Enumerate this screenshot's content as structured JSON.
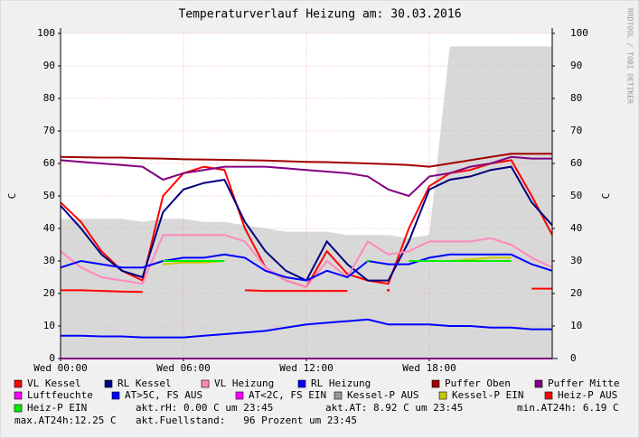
{
  "chart_data": {
    "type": "line",
    "title": "Temperaturverlauf Heizung am: 30.03.2016",
    "ylabel": "C",
    "y2label": "C",
    "watermark": "RRDTOOL / TOBI OETIKER",
    "x": [
      0,
      1,
      2,
      3,
      4,
      5,
      6,
      7,
      8,
      9,
      10,
      11,
      12,
      13,
      14,
      15,
      16,
      17,
      18,
      19,
      20,
      21,
      22,
      23,
      24
    ],
    "xlim": [
      0,
      24
    ],
    "xticks": [
      {
        "value": 0,
        "label": "Wed 00:00"
      },
      {
        "value": 6,
        "label": "Wed 06:00"
      },
      {
        "value": 12,
        "label": "Wed 12:00"
      },
      {
        "value": 18,
        "label": "Wed 18:00"
      }
    ],
    "ylim": [
      0,
      100
    ],
    "yticks": [
      0,
      10,
      20,
      30,
      40,
      50,
      60,
      70,
      80,
      90,
      100
    ],
    "y2lim": [
      0,
      100
    ],
    "y2ticks": [
      0,
      10,
      20,
      30,
      40,
      50,
      60,
      70,
      80,
      90,
      100
    ],
    "grid": true,
    "series": [
      {
        "name": "VL Kessel",
        "color": "#ff0000",
        "values": [
          48,
          42,
          33,
          27,
          24,
          50,
          57,
          59,
          58,
          40,
          28,
          24,
          22,
          33,
          26,
          24,
          23,
          40,
          53,
          57,
          58,
          60,
          61,
          50,
          38
        ]
      },
      {
        "name": "RL Kessel",
        "color": "#000080",
        "values": [
          47,
          40,
          32,
          27,
          25,
          45,
          52,
          54,
          55,
          42,
          33,
          27,
          24,
          36,
          29,
          24,
          24,
          36,
          52,
          55,
          56,
          58,
          59,
          48,
          41
        ]
      },
      {
        "name": "VL Heizung",
        "color": "#ff88bb",
        "values": [
          33,
          28,
          25,
          24,
          23,
          38,
          38,
          38,
          38,
          36,
          28,
          24,
          22,
          30,
          25,
          36,
          32,
          33,
          36,
          36,
          36,
          37,
          35,
          31,
          28
        ]
      },
      {
        "name": "RL Heizung",
        "color": "#0000ff",
        "values": [
          28,
          30,
          29,
          28,
          28,
          30,
          31,
          31,
          32,
          31,
          27,
          25,
          24,
          27,
          25,
          30,
          29,
          29,
          31,
          32,
          32,
          32,
          32,
          29,
          27
        ]
      },
      {
        "name": "Puffer Oben",
        "color": "#a00000",
        "values": [
          62,
          61.9,
          61.8,
          61.8,
          61.6,
          61.5,
          61.3,
          61.2,
          61.1,
          61,
          60.9,
          60.7,
          60.5,
          60.4,
          60.2,
          60,
          59.8,
          59.5,
          59,
          60,
          61,
          62,
          63,
          63,
          63
        ]
      },
      {
        "name": "Puffer Mitte",
        "color": "#800080",
        "values": [
          61,
          60.5,
          60,
          59.5,
          59,
          55,
          57,
          58,
          59,
          59,
          59,
          58.5,
          58,
          57.5,
          57,
          56,
          52,
          50,
          56,
          57,
          59,
          60,
          62,
          61.5,
          61.5
        ]
      },
      {
        "name": "Luftfeuchte",
        "color": "#ff00ff",
        "values": [
          0,
          0,
          0,
          0,
          0,
          0,
          0,
          0,
          0,
          0,
          0,
          0,
          0,
          0,
          0,
          0,
          0,
          0,
          0,
          0,
          0,
          0,
          0,
          0,
          0
        ]
      },
      {
        "name": "AT>5C, FS AUS",
        "color": "#0000ff",
        "values": [
          7,
          7,
          6.8,
          6.8,
          6.5,
          6.5,
          6.5,
          7,
          7.5,
          8,
          8.5,
          9.5,
          10.5,
          11,
          11.5,
          12,
          10.5,
          10.5,
          10.5,
          10,
          10,
          9.5,
          9.5,
          9,
          9
        ]
      },
      {
        "name": "AT<2C, FS EIN",
        "color": "#ff00ff",
        "values": [
          null,
          null,
          null,
          null,
          null,
          null,
          null,
          null,
          null,
          null,
          null,
          null,
          null,
          null,
          null,
          null,
          null,
          null,
          null,
          null,
          null,
          null,
          null,
          null,
          null
        ]
      },
      {
        "name": "Kessel-P AUS",
        "color": "#999999",
        "style": "area",
        "values": [
          43,
          43,
          43,
          43,
          42,
          43,
          43,
          42,
          42,
          41,
          40,
          39,
          39,
          39,
          38,
          38,
          38,
          37,
          38,
          96,
          96,
          96,
          96,
          96,
          96
        ]
      },
      {
        "name": "Kessel-P EIN",
        "color": "#c8c800",
        "values": [
          null,
          null,
          null,
          null,
          null,
          29,
          29.5,
          29.5,
          30,
          null,
          null,
          null,
          null,
          null,
          null,
          null,
          null,
          null,
          30,
          30,
          30.5,
          31,
          31,
          null,
          null
        ]
      },
      {
        "name": "Heiz-P AUS",
        "color": "#ff0000",
        "values": [
          21,
          21,
          20.8,
          20.6,
          20.5,
          null,
          null,
          null,
          null,
          21,
          20.8,
          20.8,
          20.8,
          20.8,
          20.8,
          null,
          21,
          null,
          null,
          null,
          null,
          null,
          null,
          21.5,
          21.5
        ]
      },
      {
        "name": "Heiz-P EIN",
        "color": "#00ee00",
        "values": [
          null,
          null,
          null,
          null,
          null,
          30,
          30,
          30,
          30,
          null,
          null,
          null,
          null,
          null,
          null,
          30,
          null,
          30,
          30,
          30,
          30,
          30,
          30,
          null,
          null
        ]
      }
    ],
    "info_texts": [
      "akt.rH: 0.00 C um 23:45",
      "akt.AT: 8.92 C um 23:45",
      "min.AT24h: 6.19 C",
      "max.AT24h:12.25 C",
      "akt.Fuellstand:   96 Prozent um 23:45"
    ]
  }
}
